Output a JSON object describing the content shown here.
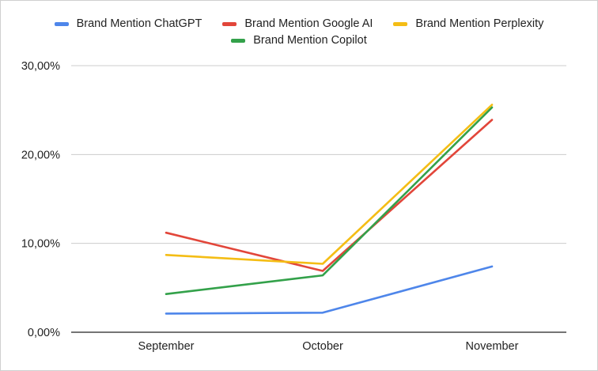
{
  "chart_data": {
    "type": "line",
    "title": "",
    "xlabel": "",
    "ylabel": "",
    "categories": [
      "September",
      "October",
      "November"
    ],
    "ylim": [
      0,
      0.3
    ],
    "yticks": [
      0,
      0.1,
      0.2,
      0.3
    ],
    "ytick_labels": [
      "0,00%",
      "10,00%",
      "20,00%",
      "30,00%"
    ],
    "grid": true,
    "legend_position": "top",
    "series": [
      {
        "name": "Brand Mention ChatGPT",
        "color": "#4e86ea",
        "values": [
          0.021,
          0.022,
          0.074
        ]
      },
      {
        "name": "Brand Mention Google AI",
        "color": "#e2463a",
        "values": [
          0.112,
          0.069,
          0.239
        ]
      },
      {
        "name": "Brand Mention Perplexity",
        "color": "#f4bd15",
        "values": [
          0.087,
          0.077,
          0.256
        ]
      },
      {
        "name": "Brand Mention Copilot",
        "color": "#33a14a",
        "values": [
          0.043,
          0.064,
          0.253
        ]
      }
    ]
  }
}
